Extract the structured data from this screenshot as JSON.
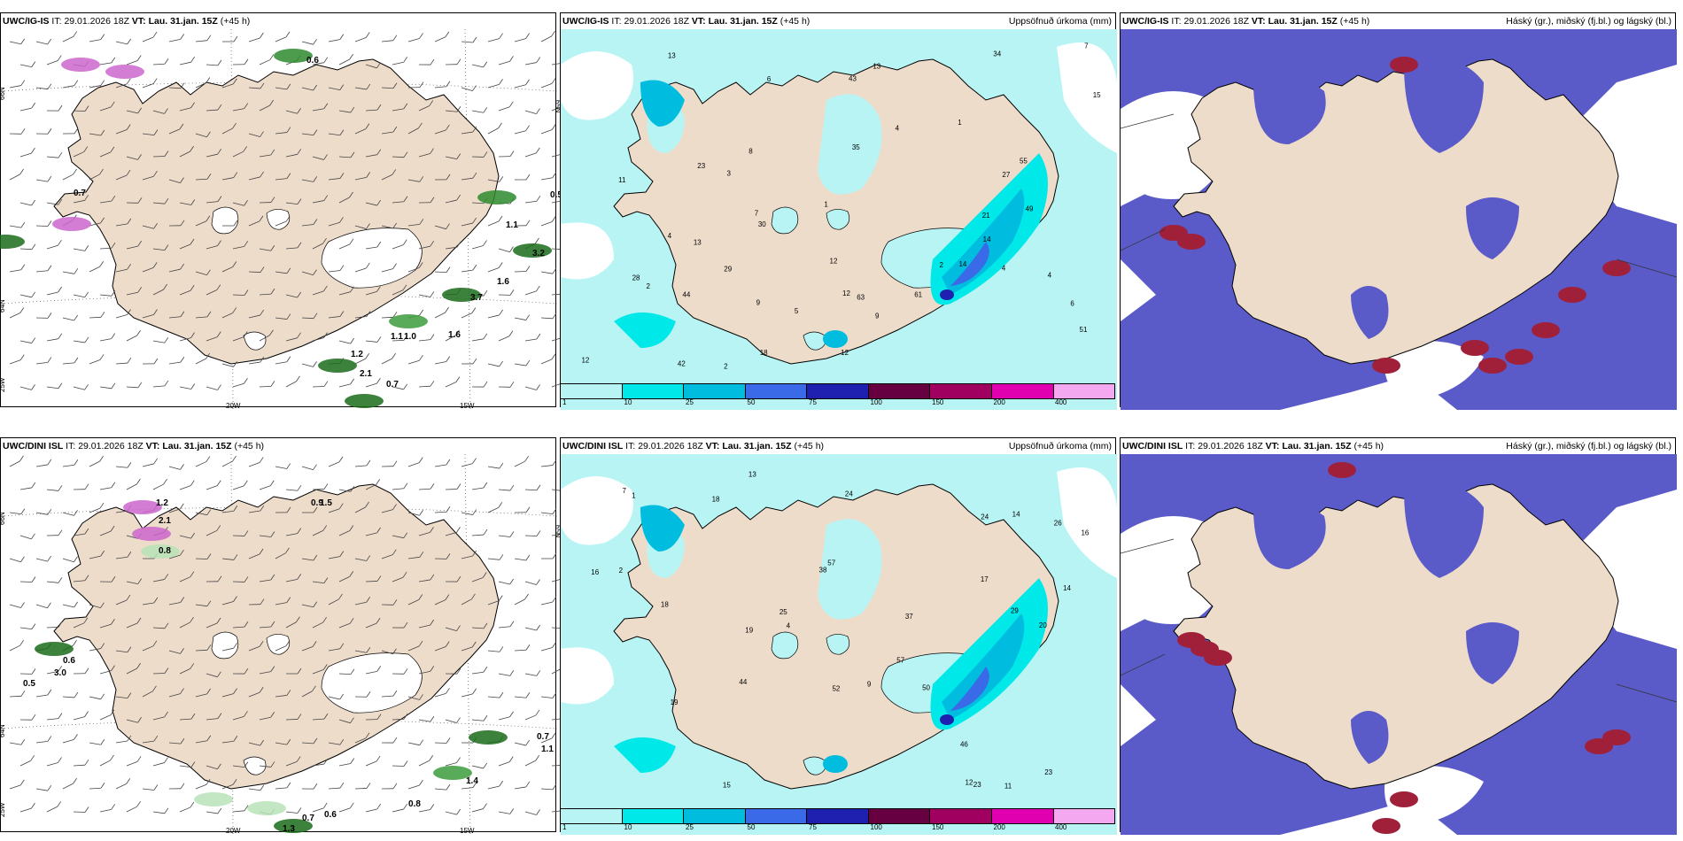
{
  "panels": [
    {
      "model": "UWC/IG-IS",
      "it_label": "IT:",
      "it_value": "29.01.2026 18Z",
      "vt_label": "VT:",
      "vt_value": "Lau. 31.jan. 15Z",
      "lead": "(+45 h)",
      "right_title": "",
      "type": "wind",
      "values": [
        "0.6",
        "0.7",
        "0.5",
        "1.1",
        "3.2",
        "1.6",
        "3.7",
        "1.1",
        "1.0",
        "1.6",
        "1.2",
        "2.1",
        "0.7"
      ],
      "lat_labels": [
        "66N",
        "64N",
        "65N"
      ],
      "lon_labels": [
        "25W",
        "20W",
        "15W"
      ]
    },
    {
      "model": "UWC/IG-IS",
      "it_label": "IT:",
      "it_value": "29.01.2026 18Z",
      "vt_label": "VT:",
      "vt_value": "Lau. 31.jan. 15Z",
      "lead": "(+45 h)",
      "right_title": "Uppsöfnuð úrkoma (mm)",
      "type": "precip",
      "values": [
        "2",
        "2",
        "7",
        "9",
        "4",
        "1",
        "4",
        "15",
        "21",
        "28",
        "3",
        "4",
        "1",
        "2",
        "13",
        "4",
        "49",
        "42",
        "55",
        "34",
        "44",
        "43",
        "29",
        "63",
        "51",
        "61",
        "35",
        "12",
        "13",
        "12",
        "12",
        "30",
        "27",
        "23",
        "18",
        "14",
        "11",
        "13",
        "14",
        "6",
        "8",
        "12",
        "5",
        "7",
        "6",
        "9"
      ],
      "colorbar_ticks": [
        "1",
        "10",
        "25",
        "50",
        "75",
        "100",
        "150",
        "200",
        "400"
      ]
    },
    {
      "model": "UWC/IG-IS",
      "it_label": "IT:",
      "it_value": "29.01.2026 18Z",
      "vt_label": "VT:",
      "vt_value": "Lau. 31.jan. 15Z",
      "lead": "(+45 h)",
      "right_title": "Háský (gr.), miðský (fj.bl.) og lágský (bl.)",
      "type": "cloud"
    },
    {
      "model": "UWC/DINI ISL",
      "it_label": "IT:",
      "it_value": "29.01.2026 18Z",
      "vt_label": "VT:",
      "vt_value": "Lau. 31.jan. 15Z",
      "lead": "(+45 h)",
      "right_title": "",
      "type": "wind",
      "values": [
        "1.2",
        "2.1",
        "0.8",
        "0.9",
        "1.5",
        "0.6",
        "3.0",
        "0.5",
        "0.7",
        "1.1",
        "1.4",
        "0.8",
        "0.7",
        "0.6",
        "1.3"
      ],
      "lat_labels": [
        "66N",
        "64N",
        "65N"
      ],
      "lon_labels": [
        "25W",
        "20W",
        "15W"
      ]
    },
    {
      "model": "UWC/DINI ISL",
      "it_label": "IT:",
      "it_value": "29.01.2026 18Z",
      "vt_label": "VT:",
      "vt_value": "Lau. 31.jan. 15Z",
      "lead": "(+45 h)",
      "right_title": "Uppsöfnuð úrkoma (mm)",
      "type": "precip",
      "values": [
        "4",
        "2",
        "19",
        "14",
        "44",
        "57",
        "23",
        "7",
        "1",
        "37",
        "12",
        "25",
        "38",
        "57",
        "50",
        "46",
        "16",
        "18",
        "17",
        "19",
        "24",
        "26",
        "29",
        "23",
        "52",
        "20",
        "13",
        "14",
        "11",
        "9",
        "15",
        "16",
        "24",
        "18"
      ],
      "colorbar_ticks": [
        "1",
        "10",
        "25",
        "50",
        "75",
        "100",
        "150",
        "200",
        "400"
      ]
    },
    {
      "model": "UWC/DINI ISL",
      "it_label": "IT:",
      "it_value": "29.01.2026 18Z",
      "vt_label": "VT:",
      "vt_value": "Lau. 31.jan. 15Z",
      "lead": "(+45 h)",
      "right_title": "Háský (gr.), miðský (fj.bl.) og lágský (bl.)",
      "type": "cloud"
    }
  ],
  "colors": {
    "land": "#eedccb",
    "sea": "#ffffff",
    "precip_light": "#b8f4f4",
    "precip_10": "#00e8e8",
    "precip_25": "#00bde0",
    "precip_50": "#3a6ae8",
    "precip_75": "#2020b0",
    "precip_100": "#660040",
    "precip_150": "#a00060",
    "precip_200": "#e000b0",
    "precip_400": "#f4a8f0",
    "cloud_mid": "#5a5ac8",
    "cloud_low": "#3a7ae8",
    "cloud_high": "#a0203a",
    "wind_green": "#2e8b2e"
  },
  "colorbar": [
    "#b8f4f4",
    "#00e8e8",
    "#00bde0",
    "#3a6ae8",
    "#2020b0",
    "#660040",
    "#a00060",
    "#e000b0",
    "#f4a8f0"
  ]
}
